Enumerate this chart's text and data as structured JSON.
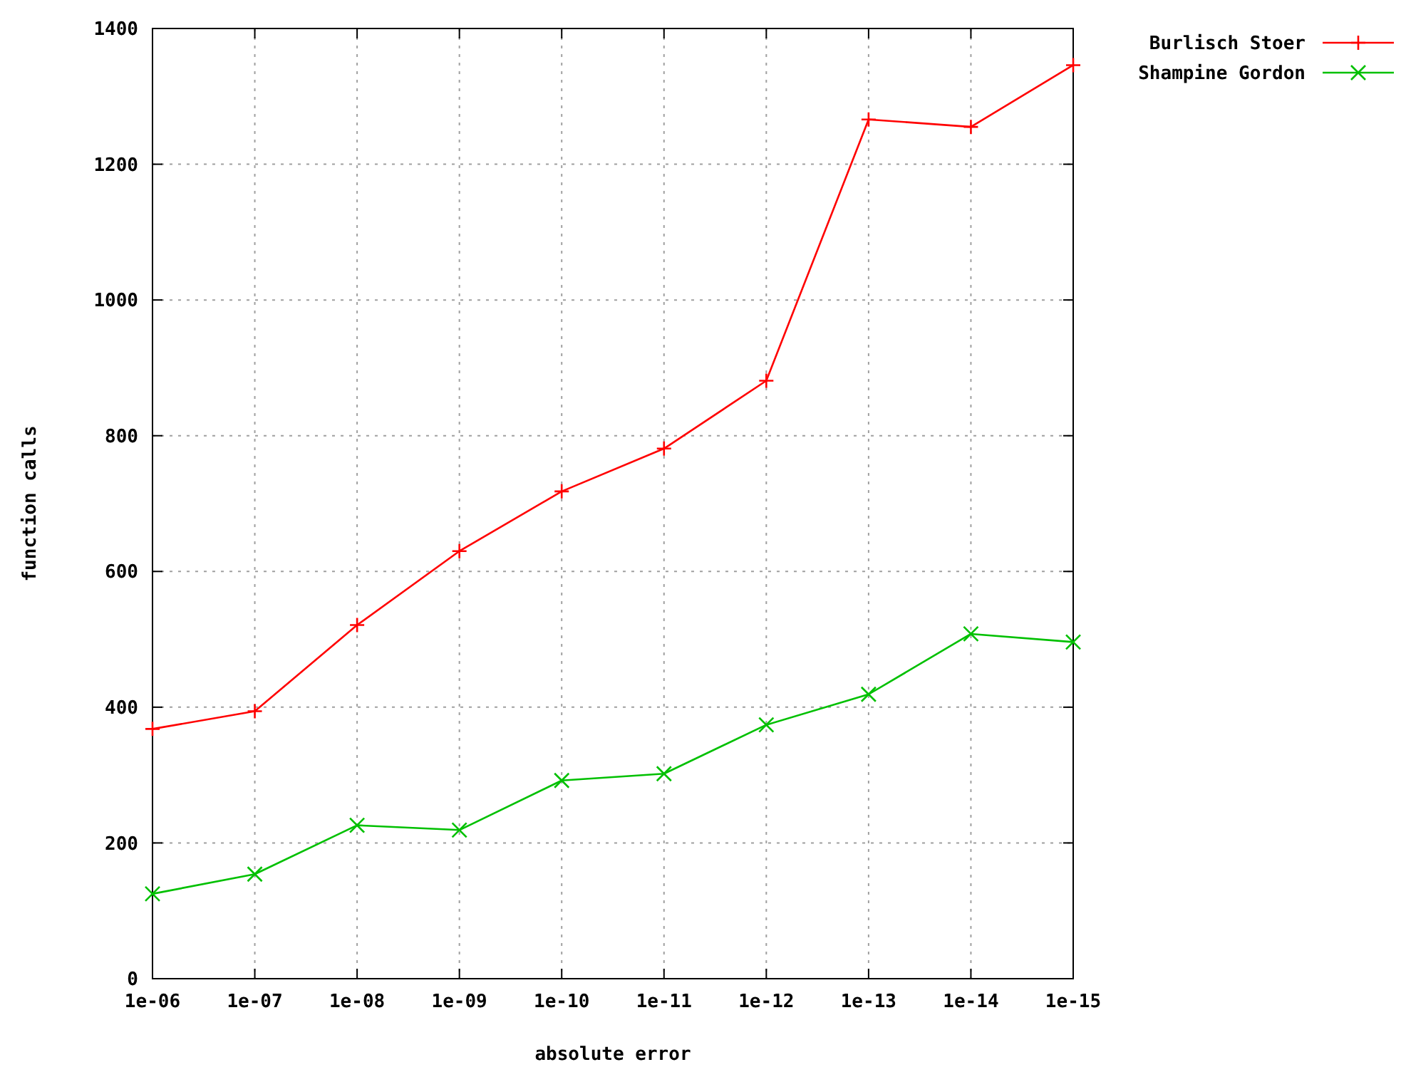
{
  "chart_data": {
    "type": "line",
    "xlabel": "absolute error",
    "ylabel": "function calls",
    "categories": [
      "1e-06",
      "1e-07",
      "1e-08",
      "1e-09",
      "1e-10",
      "1e-11",
      "1e-12",
      "1e-13",
      "1e-14",
      "1e-15"
    ],
    "series": [
      {
        "name": "Burlisch Stoer",
        "color": "#ff0000",
        "values": [
          368,
          394,
          521,
          630,
          718,
          781,
          881,
          1266,
          1255,
          1346
        ]
      },
      {
        "name": "Shampine Gordon",
        "color": "#00c000",
        "values": [
          125,
          154,
          226,
          219,
          292,
          302,
          374,
          419,
          508,
          496
        ]
      }
    ],
    "ylim": [
      0,
      1400
    ],
    "yticks": [
      0,
      200,
      400,
      600,
      800,
      1000,
      1200,
      1400
    ],
    "grid": true,
    "legend": "top right",
    "marker": "cross",
    "line_style": "solid"
  }
}
